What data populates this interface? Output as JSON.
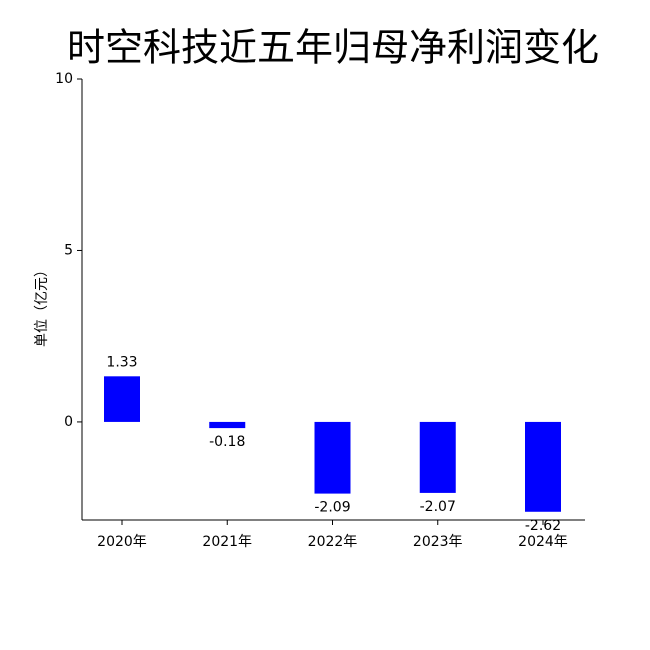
{
  "chart_data": {
    "type": "bar",
    "title": "时空科技近五年归母净利润变化",
    "y_label": "单位（亿元）",
    "categories": [
      "2020年",
      "2021年",
      "2022年",
      "2023年",
      "2024年"
    ],
    "values": [
      1.33,
      -0.18,
      -2.09,
      -2.07,
      -2.62
    ],
    "color": "#0000ff",
    "ylim": [
      -2.86,
      10
    ],
    "yticks": [
      0,
      5,
      10
    ],
    "grid": false
  }
}
